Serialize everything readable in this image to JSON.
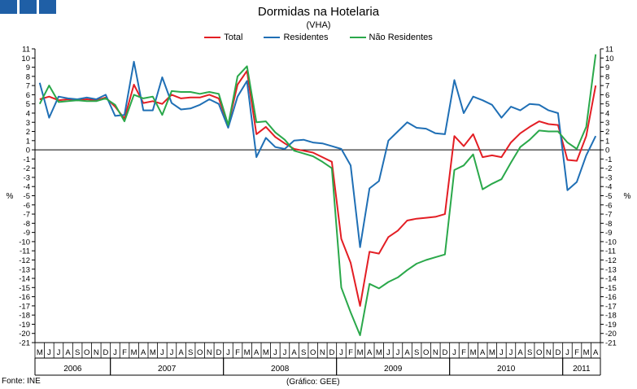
{
  "header": {
    "title": "Dormidas na Hotelaria",
    "subtitle": "(VHA)"
  },
  "footer": {
    "source": "Fonte: INE",
    "credit": "(Gráfico: GEE)"
  },
  "logo": {
    "color": "#1f5fa6"
  },
  "chart_data": {
    "type": "line",
    "title": "Dormidas na Hotelaria",
    "subtitle": "(VHA)",
    "ylabel": "%",
    "ylim": [
      -21,
      11
    ],
    "yticks": [
      11,
      10,
      9,
      8,
      7,
      6,
      5,
      4,
      3,
      2,
      1,
      0,
      -1,
      -2,
      -3,
      -4,
      -5,
      -6,
      -7,
      -8,
      -9,
      -10,
      -11,
      -12,
      -13,
      -14,
      -15,
      -16,
      -17,
      -18,
      -19,
      -20,
      -21
    ],
    "grid": false,
    "legend": "top-center",
    "x": [
      "M",
      "J",
      "J",
      "A",
      "S",
      "O",
      "N",
      "D",
      "J",
      "F",
      "M",
      "A",
      "M",
      "J",
      "J",
      "A",
      "S",
      "O",
      "N",
      "D",
      "J",
      "F",
      "M",
      "A",
      "M",
      "J",
      "J",
      "A",
      "S",
      "O",
      "N",
      "D",
      "J",
      "F",
      "M",
      "A",
      "M",
      "J",
      "J",
      "A",
      "S",
      "O",
      "N",
      "D",
      "J",
      "F",
      "M",
      "A",
      "M",
      "J",
      "J",
      "A",
      "S",
      "O",
      "N",
      "D",
      "J",
      "F",
      "M",
      "A"
    ],
    "years": [
      {
        "label": "2006",
        "start": 0,
        "end": 8
      },
      {
        "label": "2007",
        "start": 8,
        "end": 20
      },
      {
        "label": "2008",
        "start": 20,
        "end": 32
      },
      {
        "label": "2009",
        "start": 32,
        "end": 44
      },
      {
        "label": "2010",
        "start": 44,
        "end": 56
      },
      {
        "label": "2011",
        "start": 56,
        "end": 60
      }
    ],
    "series": [
      {
        "name": "Total",
        "color": "#e31e24",
        "values": [
          5.5,
          5.8,
          5.4,
          5.5,
          5.4,
          5.5,
          5.4,
          5.7,
          4.7,
          3.4,
          7.1,
          5.1,
          5.3,
          5.0,
          6.0,
          5.6,
          5.7,
          5.7,
          6.0,
          5.6,
          2.7,
          7.1,
          8.6,
          1.7,
          2.5,
          1.4,
          0.7,
          0.1,
          -0.1,
          -0.3,
          -0.8,
          -1.3,
          -9.7,
          -12.3,
          -17.0,
          -11.1,
          -11.3,
          -9.5,
          -8.8,
          -7.7,
          -7.5,
          -7.4,
          -7.3,
          -7.0,
          1.5,
          0.4,
          1.7,
          -0.8,
          -0.6,
          -0.8,
          0.8,
          1.8,
          2.5,
          3.1,
          2.8,
          2.7,
          -1.1,
          -1.2,
          1.5,
          7.0
        ]
      },
      {
        "name": "Residentes",
        "color": "#1f6fb5",
        "values": [
          7.3,
          3.5,
          5.8,
          5.6,
          5.5,
          5.7,
          5.5,
          6.0,
          3.7,
          3.8,
          9.6,
          4.3,
          4.3,
          7.9,
          5.1,
          4.4,
          4.5,
          4.9,
          5.5,
          5.0,
          2.4,
          5.8,
          7.5,
          -0.8,
          1.3,
          0.3,
          0.1,
          1.0,
          1.1,
          0.8,
          0.7,
          0.4,
          0.1,
          -1.7,
          -10.6,
          -4.2,
          -3.4,
          1.0,
          2.0,
          3.0,
          2.4,
          2.3,
          1.8,
          1.7,
          7.6,
          4.0,
          5.8,
          5.4,
          4.9,
          3.5,
          4.7,
          4.3,
          5.0,
          4.9,
          4.3,
          4.0,
          -4.4,
          -3.5,
          -0.6,
          1.5
        ]
      },
      {
        "name": "Não Residentes",
        "color": "#2aa84a",
        "values": [
          5.0,
          7.0,
          5.2,
          5.3,
          5.4,
          5.3,
          5.3,
          5.6,
          4.9,
          3.1,
          6.0,
          5.6,
          5.8,
          3.8,
          6.4,
          6.3,
          6.3,
          6.1,
          6.3,
          6.1,
          2.7,
          8.0,
          9.1,
          3.0,
          3.1,
          1.9,
          1.1,
          -0.1,
          -0.4,
          -0.7,
          -1.3,
          -2.0,
          -15.0,
          -17.7,
          -20.2,
          -14.6,
          -15.1,
          -14.4,
          -13.9,
          -13.1,
          -12.4,
          -12.0,
          -11.7,
          -11.4,
          -2.2,
          -1.7,
          -0.5,
          -4.3,
          -3.7,
          -3.2,
          -1.4,
          0.3,
          1.1,
          2.1,
          2.0,
          2.0,
          0.8,
          0.1,
          2.5,
          10.4
        ]
      }
    ]
  }
}
